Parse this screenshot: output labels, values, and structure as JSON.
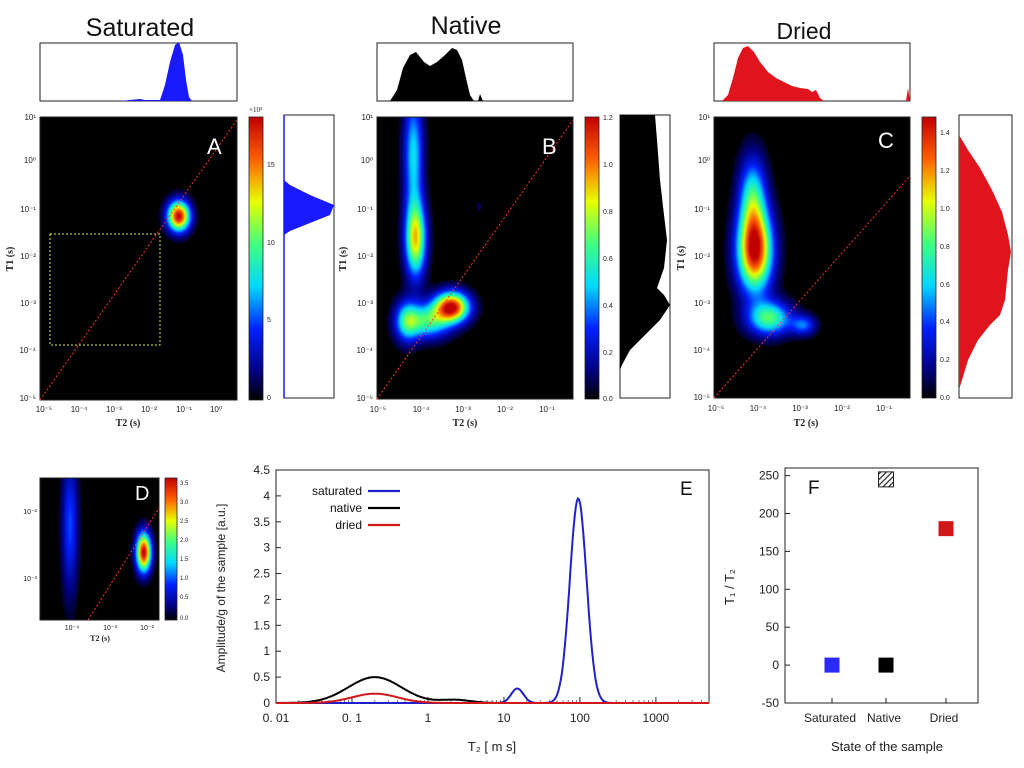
{
  "chart_data": [
    {
      "id": "A",
      "type": "heatmap",
      "title": "Saturated",
      "panel_label": "A",
      "xlabel": "T2 (s)",
      "ylabel": "T1 (s)",
      "x_ticks": [
        "10⁻⁵",
        "10⁻⁴",
        "10⁻³",
        "10⁻²",
        "10⁻¹",
        "10⁰"
      ],
      "y_ticks": [
        "10¹",
        "10⁰",
        "10⁻¹",
        "10⁻²",
        "10⁻³",
        "10⁻⁴",
        "10⁻⁵"
      ],
      "colorbar_ticks": [
        "15",
        "10",
        "5",
        "0"
      ],
      "colorbar_exp": "×10³",
      "peaks": [
        {
          "log_t2": -1.05,
          "log_t1": -1.1,
          "amp": 1.0,
          "sx": 0.22,
          "sy": 0.22
        }
      ],
      "selection_box": {
        "log_t2": [
          -5,
          -1.8
        ],
        "log_t1": [
          -3.85,
          -1.55
        ]
      },
      "marginal_color": "#1a1aff"
    },
    {
      "id": "B",
      "type": "heatmap",
      "title": "Native",
      "panel_label": "B",
      "xlabel": "T2 (s)",
      "ylabel": "T1 (s)",
      "x_ticks": [
        "10⁻⁵",
        "10⁻⁴",
        "10⁻³",
        "10⁻²",
        "10⁻¹"
      ],
      "y_ticks": [
        "10¹",
        "10⁰",
        "10⁻¹",
        "10⁻²",
        "10⁻³",
        "10⁻⁴",
        "10⁻⁵"
      ],
      "colorbar_ticks": [
        "1.2",
        "1.0",
        "0.8",
        "0.6",
        "0.4",
        "0.2",
        "0.0"
      ],
      "peaks": [
        {
          "log_t2": -3.25,
          "log_t1": -3.05,
          "amp": 1.0,
          "sx": 0.28,
          "sy": 0.22
        },
        {
          "log_t2": -4.1,
          "log_t1": -1.6,
          "amp": 0.72,
          "sx": 0.17,
          "sy": 0.55
        },
        {
          "log_t2": -4.15,
          "log_t1": 0.2,
          "amp": 0.42,
          "sx": 0.16,
          "sy": 0.9
        },
        {
          "log_t2": -3.8,
          "log_t1": -3.35,
          "amp": 0.5,
          "sx": 0.35,
          "sy": 0.25
        },
        {
          "log_t2": -4.3,
          "log_t1": -3.35,
          "amp": 0.45,
          "sx": 0.2,
          "sy": 0.3
        },
        {
          "log_t2": -2.6,
          "log_t1": -0.9,
          "amp": 0.08,
          "sx": 0.04,
          "sy": 0.08
        }
      ],
      "marginal_color": "#000000"
    },
    {
      "id": "C",
      "type": "heatmap",
      "title": "Dried",
      "panel_label": "C",
      "xlabel": "T2 (s)",
      "ylabel": "T1 (s)",
      "x_ticks": [
        "10⁻⁵",
        "10⁻⁴",
        "10⁻³",
        "10⁻²",
        "10⁻¹"
      ],
      "y_ticks": [
        "10¹",
        "10⁰",
        "10⁻¹",
        "10⁻²",
        "10⁻³",
        "10⁻⁴",
        "10⁻⁵"
      ],
      "colorbar_ticks": [
        "1.4",
        "1.2",
        "1.0",
        "0.8",
        "0.6",
        "0.4",
        "0.2",
        "0.0"
      ],
      "peaks": [
        {
          "log_t2": -4.05,
          "log_t1": -1.85,
          "amp": 1.0,
          "sx": 0.28,
          "sy": 0.6
        },
        {
          "log_t2": -4.1,
          "log_t1": -0.7,
          "amp": 0.45,
          "sx": 0.22,
          "sy": 0.6
        },
        {
          "log_t2": -3.7,
          "log_t1": -3.3,
          "amp": 0.55,
          "sx": 0.35,
          "sy": 0.25
        },
        {
          "log_t2": -2.9,
          "log_t1": -3.45,
          "amp": 0.3,
          "sx": 0.2,
          "sy": 0.15
        }
      ],
      "marginal_color": "#e0141c"
    },
    {
      "id": "D",
      "type": "heatmap",
      "panel_label": "D",
      "xlabel": "T2 (s)",
      "x_ticks": [
        "10⁻⁴",
        "10⁻³",
        "10⁻²"
      ],
      "y_ticks": [
        "10⁻²",
        "10⁻³"
      ],
      "colorbar_ticks": [
        "3.5",
        "3.0",
        "2.5",
        "2.0",
        "1.5",
        "1.0",
        "0.5",
        "0.0"
      ],
      "peaks": [
        {
          "log_t2": -2.2,
          "log_t1": -2.6,
          "amp": 1.0,
          "sx": 0.14,
          "sy": 0.2
        },
        {
          "log_t2": -4.2,
          "log_t1": -2.2,
          "amp": 0.28,
          "sx": 0.15,
          "sy": 0.7
        }
      ]
    },
    {
      "id": "E",
      "type": "line",
      "panel_label": "E",
      "xlabel": "T₂  [ m s]",
      "ylabel": "Amplitude/g of the sample [a.u.]",
      "x_scale": "log",
      "xlim": [
        0.01,
        5000
      ],
      "ylim": [
        0,
        4.5
      ],
      "x_ticks": [
        "0. 01",
        "0. 1",
        "1",
        "10",
        "100",
        "1000"
      ],
      "y_ticks": [
        "0",
        "0.5",
        "1",
        "1.5",
        "2",
        "2.5",
        "3",
        "3.5",
        "4",
        "4.5"
      ],
      "legend_position": "top-left",
      "series": [
        {
          "name": "saturated",
          "color": "#2020c8",
          "peaks": [
            {
              "x": 15,
              "amp": 0.28,
              "w": 0.08
            },
            {
              "x": 95,
              "amp": 3.95,
              "w": 0.11
            }
          ]
        },
        {
          "name": "native",
          "color": "#000000",
          "peaks": [
            {
              "x": 0.2,
              "amp": 0.5,
              "w": 0.35
            },
            {
              "x": 2.3,
              "amp": 0.06,
              "w": 0.2
            }
          ]
        },
        {
          "name": "dried",
          "color": "#d01818",
          "peaks": [
            {
              "x": 0.2,
              "amp": 0.18,
              "w": 0.3
            }
          ]
        }
      ]
    },
    {
      "id": "F",
      "type": "scatter",
      "panel_label": "F",
      "xlabel": "State of the sample",
      "ylabel": "T₁ / T₂",
      "categories": [
        "Saturated",
        "Native",
        "Dried"
      ],
      "ylim": [
        -50,
        260
      ],
      "y_ticks": [
        "-50",
        "0",
        "50",
        "100",
        "150",
        "200",
        "250"
      ],
      "points": [
        {
          "category": "Saturated",
          "y": 0,
          "color": "#2b2bff"
        },
        {
          "category": "Native",
          "y": 0,
          "color": "#000000"
        },
        {
          "category": "Native",
          "y": 245,
          "color": "#333333",
          "hatched": true
        },
        {
          "category": "Dried",
          "y": 180,
          "color": "#d01818"
        }
      ]
    }
  ]
}
